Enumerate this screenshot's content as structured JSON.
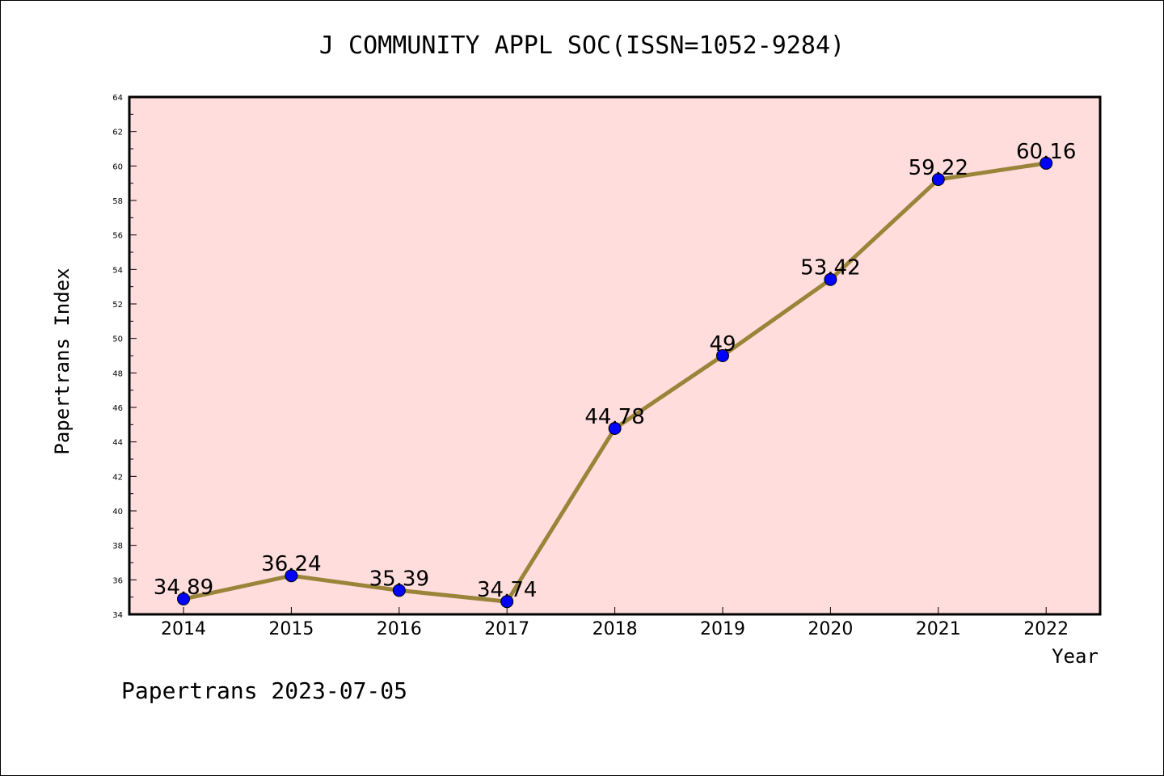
{
  "chart_data": {
    "type": "line",
    "title": "J COMMUNITY APPL SOC(ISSN=1052-9284)",
    "xlabel": "Year",
    "ylabel": "Papertrans Index",
    "categories": [
      "2014",
      "2015",
      "2016",
      "2017",
      "2018",
      "2019",
      "2020",
      "2021",
      "2022"
    ],
    "values": [
      34.89,
      36.24,
      35.39,
      34.74,
      44.78,
      49,
      53.42,
      59.22,
      60.16
    ],
    "data_labels": [
      "34.89",
      "36.24",
      "35.39",
      "34.74",
      "44.78",
      "49",
      "53.42",
      "59.22",
      "60.16"
    ],
    "ylim": [
      34,
      64
    ],
    "yticks": [
      34,
      36,
      38,
      40,
      42,
      44,
      46,
      48,
      50,
      52,
      54,
      56,
      58,
      60,
      62,
      64
    ],
    "grid": false,
    "colors": {
      "plot_background": "#FFDDDD",
      "line": "#9A8439",
      "marker": "#0000FF"
    }
  },
  "footer": "Papertrans 2023-07-05"
}
